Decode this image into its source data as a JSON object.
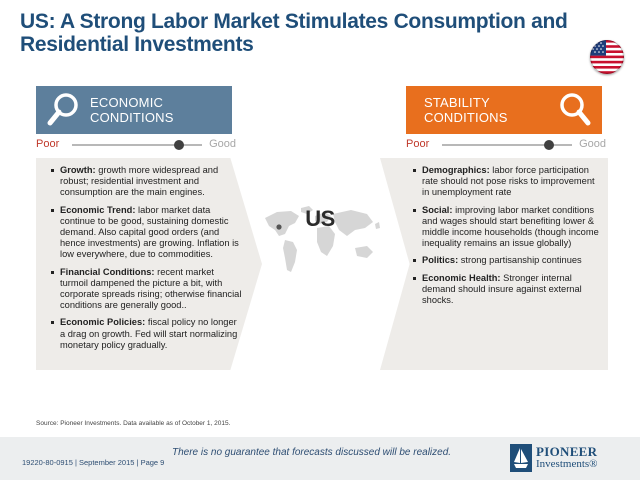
{
  "slide": {
    "title": "US: A Strong Labor Market Stimulates Consumption and Residential Investments",
    "center_label": "US"
  },
  "left": {
    "header": "ECONOMIC CONDITIONS",
    "icon": "magnifier-icon",
    "scale": {
      "poor": "Poor",
      "good": "Good",
      "level": 0.82
    },
    "items": [
      {
        "term": "Growth:",
        "text": " growth more widespread and robust; residential investment and consumption are the main engines."
      },
      {
        "term": "Economic Trend:",
        "text": " labor market data continue to be good, sustaining domestic demand. Also capital good orders (and hence investments) are growing. Inflation is low everywhere, due to commodities."
      },
      {
        "term": "Financial Conditions:",
        "text": " recent market turmoil dampened the picture a bit, with corporate spreads rising; otherwise financial conditions are generally good.."
      },
      {
        "term": "Economic Policies:",
        "text": " fiscal policy no longer a drag on growth. Fed will start normalizing monetary policy gradually."
      }
    ]
  },
  "right": {
    "header": "STABILITY CONDITIONS",
    "icon": "magnifier-icon",
    "scale": {
      "poor": "Poor",
      "good": "Good",
      "level": 0.82
    },
    "items": [
      {
        "term": "Demographics:",
        "text": " labor force participation rate should not pose risks to improvement in unemployment rate"
      },
      {
        "term": "Social:",
        "text": " improving labor market conditions and wages should start benefiting lower & middle income households (though income inequality remains an issue globally)"
      },
      {
        "term": "Politics:",
        "text": " strong partisanship continues"
      },
      {
        "term": "Economic Health:",
        "text": " Stronger internal demand should insure against external shocks."
      }
    ]
  },
  "footer": {
    "source": "Source: Pioneer Investments. Data available  as of October 1, 2015.",
    "code": "19220-80-0915 | September 2015 | Page 9",
    "disclaimer": "There is no guarantee that forecasts discussed will be realized.",
    "logo_line1": "PIONEER",
    "logo_line2": "Investments®"
  },
  "colors": {
    "title": "#1f4e79",
    "economic_header": "#5d7f9c",
    "stability_header": "#e86f1e",
    "panel": "#eeece9",
    "poor": "#c0392b"
  }
}
